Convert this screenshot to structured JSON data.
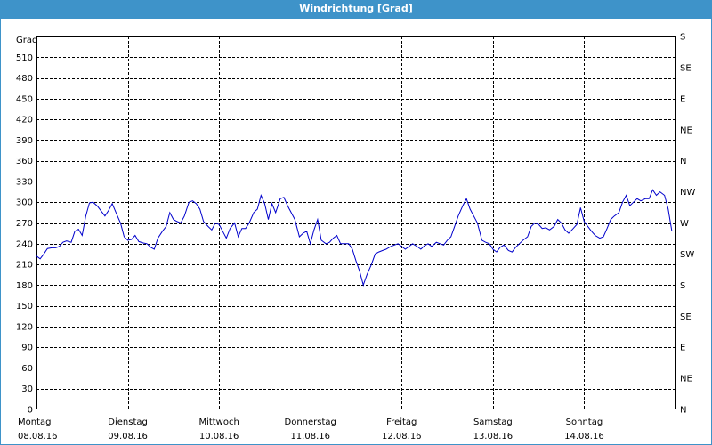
{
  "title": "Windrichtung [Grad]",
  "chart_data": {
    "type": "line",
    "title": "Windrichtung [Grad]",
    "ylabel": "Grad",
    "ylim": [
      0,
      540
    ],
    "y_ticks": [
      0,
      30,
      60,
      90,
      120,
      150,
      180,
      210,
      240,
      270,
      300,
      330,
      360,
      390,
      420,
      450,
      480,
      510
    ],
    "y2_ticks": [
      "N",
      "NE",
      "E",
      "SE",
      "S",
      "SW",
      "W",
      "NW",
      "N",
      "NE",
      "E",
      "SE",
      "S"
    ],
    "x_labels": [
      {
        "day": "Montag",
        "date": "08.08.16"
      },
      {
        "day": "Dienstag",
        "date": "09.08.16"
      },
      {
        "day": "Mittwoch",
        "date": "10.08.16"
      },
      {
        "day": "Donnerstag",
        "date": "11.08.16"
      },
      {
        "day": "Freitag",
        "date": "12.08.16"
      },
      {
        "day": "Samstag",
        "date": "13.08.16"
      },
      {
        "day": "Sonntag",
        "date": "14.08.16"
      }
    ],
    "xlim_days": [
      0,
      7
    ],
    "grid": true,
    "line_color": "#0000cc",
    "series": [
      {
        "x": [
          0.0,
          0.04,
          0.08,
          0.12,
          0.17,
          0.21,
          0.25,
          0.29,
          0.33,
          0.38,
          0.42,
          0.46,
          0.5,
          0.54,
          0.58,
          0.62,
          0.67,
          0.71,
          0.75,
          0.79,
          0.83,
          0.88,
          0.92,
          0.96,
          1.0,
          1.04,
          1.08,
          1.12,
          1.17,
          1.21,
          1.25,
          1.29,
          1.33,
          1.38,
          1.42,
          1.46,
          1.5,
          1.54,
          1.58,
          1.62,
          1.67,
          1.71,
          1.75,
          1.79,
          1.83,
          1.88,
          1.92,
          1.96,
          2.0,
          2.04,
          2.08,
          2.12,
          2.17,
          2.21,
          2.25,
          2.29,
          2.33,
          2.38,
          2.42,
          2.46,
          2.5,
          2.54,
          2.58,
          2.62,
          2.67,
          2.71,
          2.75,
          2.79,
          2.83,
          2.88,
          2.92,
          2.96,
          3.0,
          3.04,
          3.08,
          3.12,
          3.17,
          3.21,
          3.25,
          3.29,
          3.33,
          3.38,
          3.42,
          3.46,
          3.5,
          3.54,
          3.58,
          3.62,
          3.67,
          3.71,
          3.75,
          3.79,
          3.83,
          3.88,
          3.92,
          3.96,
          4.0,
          4.04,
          4.08,
          4.12,
          4.17,
          4.21,
          4.25,
          4.29,
          4.33,
          4.38,
          4.42,
          4.46,
          4.5,
          4.54,
          4.58,
          4.62,
          4.67,
          4.71,
          4.75,
          4.79,
          4.83,
          4.88,
          4.92,
          4.96,
          5.0,
          5.04,
          5.08,
          5.12,
          5.17,
          5.21,
          5.25,
          5.29,
          5.33,
          5.38,
          5.42,
          5.46,
          5.5,
          5.54,
          5.58,
          5.62,
          5.67,
          5.71,
          5.75,
          5.79,
          5.83,
          5.88,
          5.92,
          5.96,
          6.0,
          6.04,
          6.08,
          6.12,
          6.17,
          6.21,
          6.25,
          6.29,
          6.33,
          6.38,
          6.42,
          6.46,
          6.5,
          6.54,
          6.58,
          6.62,
          6.67,
          6.71,
          6.75,
          6.79,
          6.83,
          6.88,
          6.92,
          6.96
        ],
        "y": [
          222,
          218,
          225,
          233,
          234,
          234,
          236,
          242,
          244,
          242,
          258,
          261,
          252,
          280,
          299,
          300,
          294,
          287,
          280,
          288,
          298,
          282,
          270,
          250,
          245,
          246,
          252,
          243,
          241,
          240,
          235,
          232,
          248,
          258,
          265,
          285,
          275,
          272,
          270,
          280,
          300,
          302,
          298,
          290,
          272,
          265,
          260,
          270,
          268,
          258,
          248,
          262,
          270,
          250,
          262,
          262,
          270,
          285,
          290,
          310,
          298,
          275,
          298,
          285,
          305,
          307,
          295,
          285,
          275,
          250,
          255,
          258,
          240,
          260,
          275,
          245,
          240,
          242,
          248,
          252,
          240,
          240,
          240,
          232,
          215,
          200,
          180,
          195,
          210,
          225,
          228,
          230,
          232,
          236,
          238,
          240,
          236,
          232,
          236,
          240,
          236,
          232,
          237,
          240,
          236,
          242,
          240,
          238,
          245,
          250,
          265,
          280,
          295,
          305,
          290,
          280,
          270,
          245,
          242,
          240,
          232,
          228,
          235,
          238,
          230,
          228,
          235,
          240,
          245,
          250,
          265,
          270,
          268,
          262,
          263,
          260,
          265,
          275,
          270,
          260,
          255,
          262,
          268,
          292,
          272,
          265,
          258,
          252,
          248,
          250,
          262,
          275,
          280,
          285,
          300,
          310,
          295,
          300,
          305,
          302,
          305,
          305,
          318,
          310,
          315,
          310,
          290,
          258
        ]
      }
    ]
  }
}
